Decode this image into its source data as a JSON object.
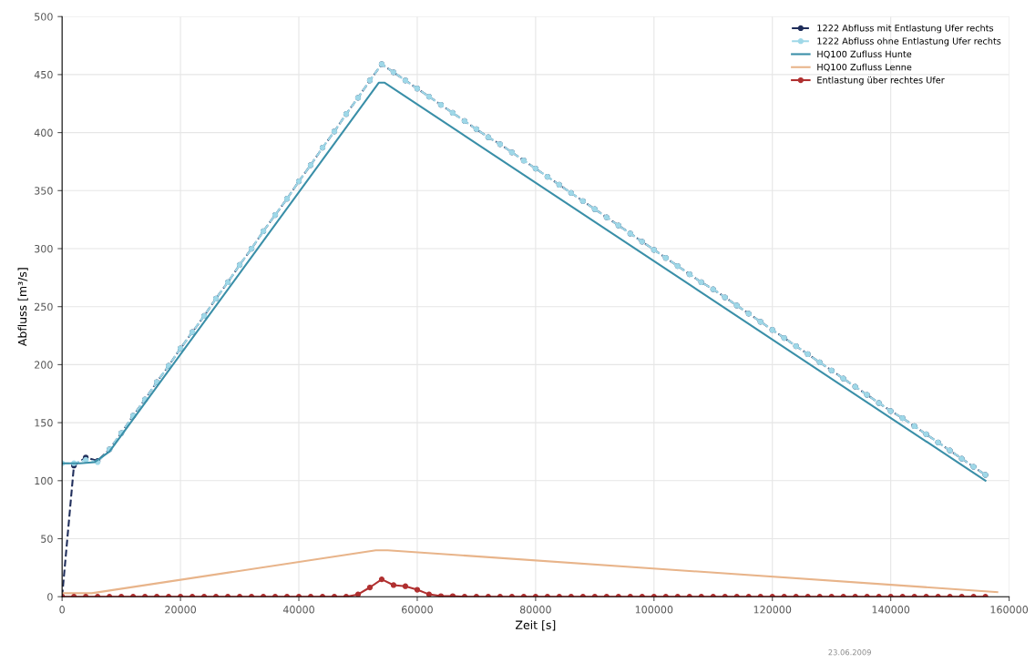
{
  "chart_data": {
    "type": "line",
    "xlabel": "Zeit [s]",
    "ylabel": "Abfluss [m³/s]",
    "xlim": [
      0,
      160000
    ],
    "xticks": [
      0,
      20000,
      40000,
      60000,
      80000,
      100000,
      120000,
      140000,
      160000
    ],
    "ylim": [
      0,
      500
    ],
    "yticks": [
      0,
      50,
      100,
      150,
      200,
      250,
      300,
      350,
      400,
      450,
      500
    ],
    "grid": true,
    "legend": "top right",
    "annotations": [
      "23.06.2009"
    ],
    "series": [
      {
        "name": "1222 Abfluss mit Entlastung Ufer rechts",
        "color": "#1f2d5a",
        "marker": "circle",
        "line_style": "dashed",
        "x": [
          0,
          2000,
          4000,
          6000,
          8000,
          10000,
          12000,
          14000,
          16000,
          18000,
          20000,
          22000,
          24000,
          26000,
          28000,
          30000,
          32000,
          34000,
          36000,
          38000,
          40000,
          42000,
          44000,
          46000,
          48000,
          50000,
          52000,
          54000,
          56000,
          58000,
          60000,
          62000,
          64000,
          66000,
          68000,
          70000,
          72000,
          74000,
          76000,
          78000,
          80000,
          82000,
          84000,
          86000,
          88000,
          90000,
          92000,
          94000,
          96000,
          98000,
          100000,
          102000,
          104000,
          106000,
          108000,
          110000,
          112000,
          114000,
          116000,
          118000,
          120000,
          122000,
          124000,
          126000,
          128000,
          130000,
          132000,
          134000,
          136000,
          138000,
          140000,
          142000,
          144000,
          146000,
          148000,
          150000,
          152000,
          154000,
          156000
        ],
        "values": [
          0,
          113,
          120,
          117,
          127,
          141,
          156,
          170,
          185,
          199,
          214,
          228,
          242,
          257,
          271,
          286,
          300,
          315,
          329,
          343,
          358,
          372,
          387,
          401,
          416,
          430,
          445,
          459,
          452,
          445,
          438,
          431,
          424,
          417,
          410,
          403,
          396,
          390,
          383,
          376,
          369,
          362,
          355,
          348,
          341,
          334,
          327,
          320,
          313,
          306,
          299,
          292,
          285,
          278,
          271,
          265,
          258,
          251,
          244,
          237,
          230,
          223,
          216,
          209,
          202,
          195,
          188,
          181,
          174,
          167,
          160,
          154,
          147,
          140,
          133,
          126,
          119,
          112,
          105
        ]
      },
      {
        "name": "1222 Abfluss ohne Entlastung Ufer rechts",
        "color": "#9fd8e8",
        "marker": "circle",
        "line_style": "dashed",
        "x": [
          0,
          2000,
          4000,
          6000,
          8000,
          10000,
          12000,
          14000,
          16000,
          18000,
          20000,
          22000,
          24000,
          26000,
          28000,
          30000,
          32000,
          34000,
          36000,
          38000,
          40000,
          42000,
          44000,
          46000,
          48000,
          50000,
          52000,
          54000,
          56000,
          58000,
          60000,
          62000,
          64000,
          66000,
          68000,
          70000,
          72000,
          74000,
          76000,
          78000,
          80000,
          82000,
          84000,
          86000,
          88000,
          90000,
          92000,
          94000,
          96000,
          98000,
          100000,
          102000,
          104000,
          106000,
          108000,
          110000,
          112000,
          114000,
          116000,
          118000,
          120000,
          122000,
          124000,
          126000,
          128000,
          130000,
          132000,
          134000,
          136000,
          138000,
          140000,
          142000,
          144000,
          146000,
          148000,
          150000,
          152000,
          154000,
          156000
        ],
        "values": [
          115,
          115,
          118,
          116,
          127,
          141,
          156,
          170,
          185,
          199,
          214,
          228,
          242,
          257,
          271,
          286,
          300,
          315,
          329,
          343,
          358,
          372,
          387,
          401,
          416,
          430,
          445,
          459,
          452,
          445,
          438,
          431,
          424,
          417,
          410,
          403,
          396,
          390,
          383,
          376,
          369,
          362,
          355,
          348,
          341,
          334,
          327,
          320,
          313,
          306,
          299,
          292,
          285,
          278,
          271,
          265,
          258,
          251,
          244,
          237,
          230,
          223,
          216,
          209,
          202,
          195,
          188,
          181,
          174,
          167,
          160,
          154,
          147,
          140,
          133,
          126,
          119,
          112,
          105
        ]
      },
      {
        "name": "HQ100 Zufluss Hunte",
        "color": "#3a8fa8",
        "marker": "none",
        "line_style": "solid",
        "x": [
          0,
          3000,
          5500,
          8000,
          53500,
          54500,
          156000
        ],
        "values": [
          115,
          115,
          116,
          125,
          443,
          443,
          100
        ]
      },
      {
        "name": "HQ100 Zufluss Lenne",
        "color": "#e8b48a",
        "marker": "none",
        "line_style": "solid",
        "x": [
          0,
          5000,
          53000,
          55000,
          158000
        ],
        "values": [
          3,
          3,
          40,
          40,
          4
        ]
      },
      {
        "name": "Entlastung über rechtes Ufer",
        "color": "#b03030",
        "marker": "circle",
        "line_style": "solid",
        "x": [
          0,
          2000,
          4000,
          6000,
          8000,
          10000,
          12000,
          14000,
          16000,
          18000,
          20000,
          22000,
          24000,
          26000,
          28000,
          30000,
          32000,
          34000,
          36000,
          38000,
          40000,
          42000,
          44000,
          46000,
          48000,
          50000,
          52000,
          54000,
          56000,
          58000,
          60000,
          62000,
          64000,
          66000,
          68000,
          70000,
          72000,
          74000,
          76000,
          78000,
          80000,
          82000,
          84000,
          86000,
          88000,
          90000,
          92000,
          94000,
          96000,
          98000,
          100000,
          102000,
          104000,
          106000,
          108000,
          110000,
          112000,
          114000,
          116000,
          118000,
          120000,
          122000,
          124000,
          126000,
          128000,
          130000,
          132000,
          134000,
          136000,
          138000,
          140000,
          142000,
          144000,
          146000,
          148000,
          150000,
          152000,
          154000,
          156000
        ],
        "values": [
          0,
          0,
          0,
          0,
          0,
          0,
          0,
          0,
          0,
          0,
          0,
          0,
          0,
          0,
          0,
          0,
          0,
          0,
          0,
          0,
          0,
          0,
          0,
          0,
          0,
          2,
          8,
          15,
          10,
          9,
          6,
          2,
          0.5,
          0.5,
          0,
          0,
          0,
          0,
          0,
          0,
          0,
          0,
          0,
          0,
          0,
          0,
          0,
          0,
          0,
          0,
          0,
          0,
          0,
          0,
          0,
          0,
          0,
          0,
          0,
          0,
          0,
          0,
          0,
          0,
          0,
          0,
          0,
          0,
          0,
          0,
          0,
          0,
          0,
          0,
          0,
          0,
          0,
          0,
          0
        ]
      }
    ]
  }
}
